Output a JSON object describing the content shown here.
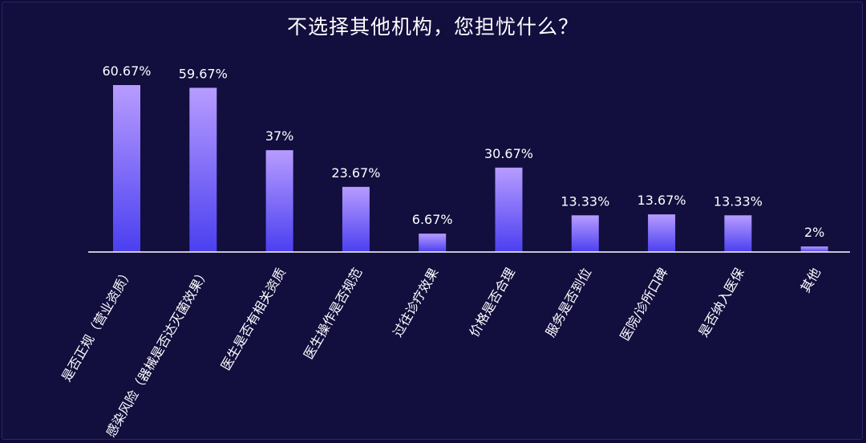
{
  "chart_data": {
    "type": "bar",
    "title": "不选择其他机构，您担忧什么？",
    "categories": [
      "是否正规（营业资质）",
      "感染风险（器械是否达灭菌效果）",
      "医生是否有相关资质",
      "医生操作是否规范",
      "过往诊疗效果",
      "价格是否合理",
      "服务是否到位",
      "医院/诊所口碑",
      "是否纳入医保",
      "其他"
    ],
    "values": [
      60.67,
      59.67,
      37,
      23.67,
      6.67,
      30.67,
      13.33,
      13.67,
      13.33,
      2
    ],
    "value_labels": [
      "60.67%",
      "59.67%",
      "37%",
      "23.67%",
      "6.67%",
      "30.67%",
      "13.33%",
      "13.67%",
      "13.33%",
      "2%"
    ],
    "ylim": [
      0,
      60.67
    ],
    "grid": false,
    "bar_color_top": "#b79cff",
    "bar_color_bottom": "#4b3ff0",
    "background": "#120e3e",
    "text_color": "#ffffff"
  }
}
